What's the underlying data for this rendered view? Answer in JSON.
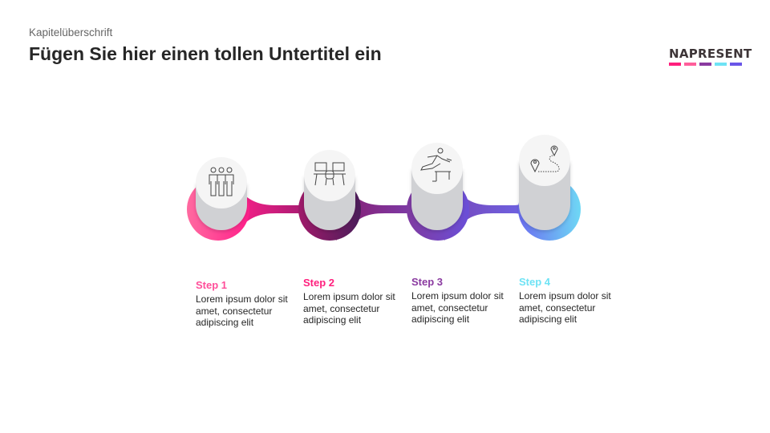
{
  "header": {
    "kicker": "Kapitelüberschrift",
    "title": "Fügen Sie hier einen tollen Untertitel ein"
  },
  "logo": {
    "text": "NAPRESENT",
    "colors": [
      "#ff1f7d",
      "#ff5e9a",
      "#8a3aa0",
      "#6ee3f5",
      "#6a55e8"
    ]
  },
  "steps": [
    {
      "label": "Step 1",
      "text": "Lorem ipsum dolor sit amet, consectetur adipiscing elit",
      "color": "#ff4f9a",
      "icon": "team-icon",
      "gradient": [
        "#ff6aa0",
        "#ff1f8a"
      ]
    },
    {
      "label": "Step 2",
      "text": "Lorem ipsum dolor sit amet, consectetur adipiscing elit",
      "color": "#ff1f7d",
      "icon": "workstation-icon",
      "gradient": [
        "#a01a6a",
        "#4a1d5a"
      ]
    },
    {
      "label": "Step 3",
      "text": "Lorem ipsum dolor sit amet, consectetur adipiscing elit",
      "color": "#8a3aa0",
      "icon": "hurdle-runner-icon",
      "gradient": [
        "#7f3aa0",
        "#6a4fd8"
      ]
    },
    {
      "label": "Step 4",
      "text": "Lorem ipsum dolor sit amet, consectetur adipiscing elit",
      "color": "#6ee3f5",
      "icon": "route-pins-icon",
      "gradient": [
        "#6a6cf0",
        "#6ed8f5"
      ]
    }
  ]
}
